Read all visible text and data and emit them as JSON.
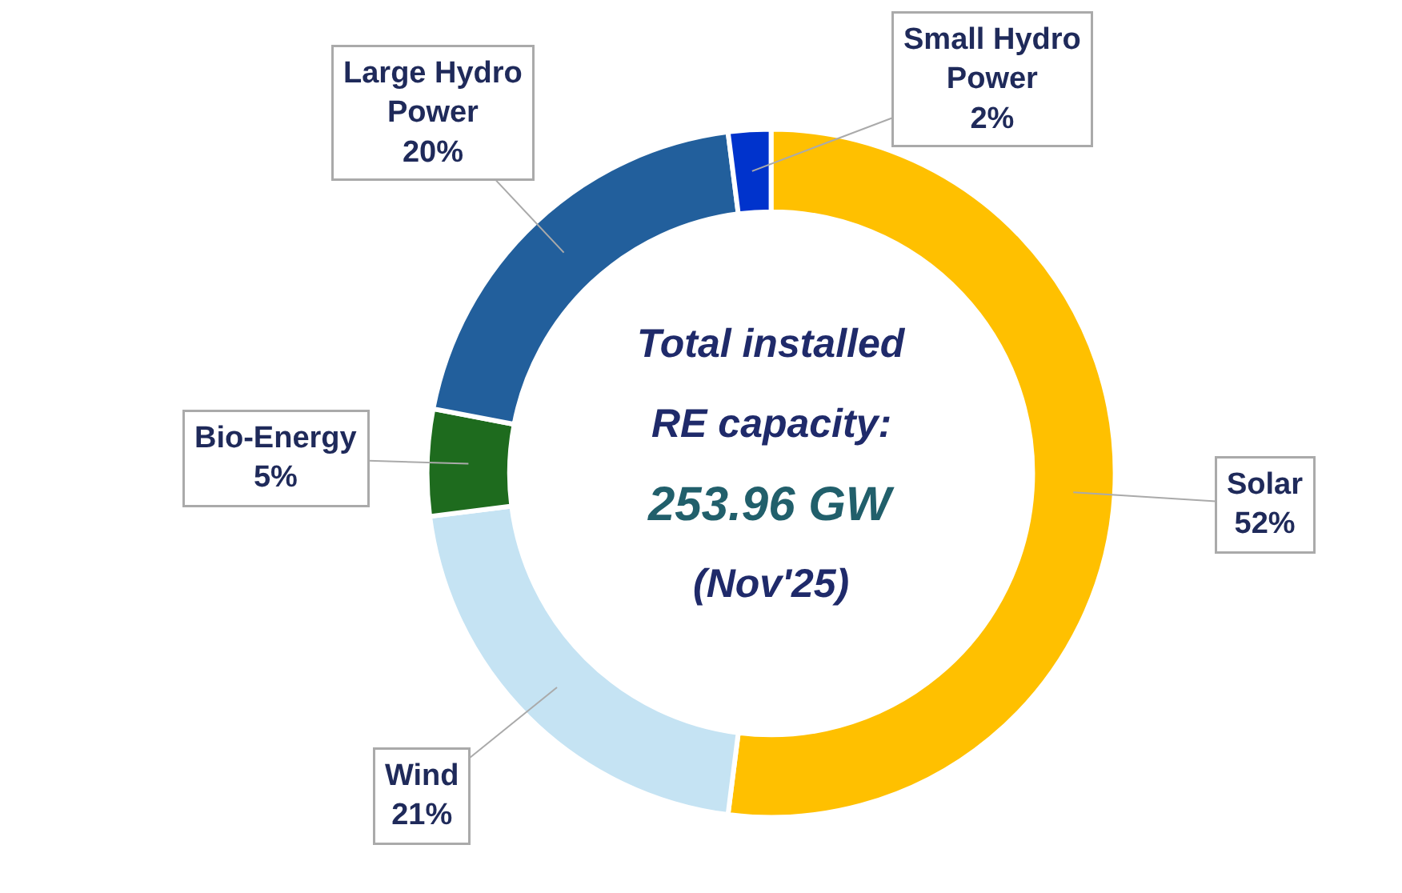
{
  "chart_data": {
    "type": "donut",
    "categories": [
      "Solar",
      "Wind",
      "Bio-Energy",
      "Large Hydro Power",
      "Small Hydro Power"
    ],
    "values": [
      52,
      21,
      5,
      20,
      2
    ],
    "value_labels": [
      "52%",
      "21%",
      "5%",
      "20%",
      "2%"
    ],
    "colors": [
      "#ffc000",
      "#c5e3f3",
      "#1e6b1e",
      "#225f9c",
      "#0033cc"
    ],
    "annotations": [
      "Total installed",
      "RE capacity:",
      "253.96 GW",
      "(Nov'25)"
    ],
    "legend": false
  }
}
